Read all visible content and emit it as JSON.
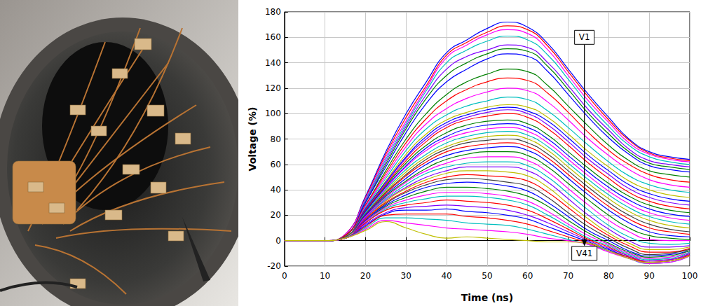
{
  "chart_data": {
    "type": "line",
    "x_label": "Time (ns)",
    "y_label": "Voltage (%)",
    "xlim": [
      0,
      100
    ],
    "xticks": [
      0,
      10,
      20,
      30,
      40,
      50,
      60,
      70,
      80,
      90,
      100
    ],
    "ylim": [
      -20,
      180
    ],
    "yticks": [
      -20,
      0,
      20,
      40,
      60,
      80,
      100,
      120,
      140,
      160,
      180
    ],
    "grid": true,
    "annotations": [
      {
        "text": "V1",
        "x": 74,
        "y": 160
      },
      {
        "text": "V41",
        "x": 74,
        "y": -10
      }
    ],
    "x": [
      0,
      10,
      15,
      20,
      25,
      30,
      35,
      40,
      45,
      50,
      55,
      60,
      65,
      70,
      75,
      80,
      85,
      90,
      95,
      100
    ],
    "series": [
      {
        "color": "#0000ff",
        "values": [
          0,
          0,
          5,
          35,
          70,
          100,
          125,
          148,
          158,
          167,
          172,
          168,
          155,
          135,
          115,
          97,
          80,
          70,
          66,
          64
        ]
      },
      {
        "color": "#ff0000",
        "values": [
          0,
          0,
          5,
          34,
          68,
          97,
          122,
          146,
          156,
          164,
          169,
          166,
          153,
          133,
          113,
          95,
          79,
          69,
          65,
          63
        ]
      },
      {
        "color": "#ff00ff",
        "values": [
          0,
          0,
          5,
          33,
          66,
          94,
          120,
          144,
          154,
          162,
          166,
          163,
          150,
          130,
          110,
          93,
          77,
          68,
          64,
          62
        ]
      },
      {
        "color": "#00bfbf",
        "values": [
          0,
          0,
          4,
          32,
          64,
          92,
          118,
          140,
          150,
          157,
          161,
          158,
          146,
          127,
          107,
          90,
          75,
          66,
          62,
          60
        ]
      },
      {
        "color": "#7f00ff",
        "values": [
          0,
          0,
          4,
          31,
          62,
          90,
          115,
          135,
          145,
          150,
          154,
          152,
          140,
          122,
          103,
          87,
          72,
          63,
          60,
          58
        ]
      },
      {
        "color": "#008000",
        "values": [
          0,
          0,
          4,
          30,
          60,
          88,
          112,
          130,
          140,
          147,
          151,
          149,
          137,
          119,
          100,
          84,
          70,
          61,
          58,
          56
        ]
      },
      {
        "color": "#0000ff",
        "values": [
          0,
          0,
          4,
          30,
          58,
          85,
          108,
          125,
          135,
          143,
          147,
          145,
          133,
          115,
          97,
          81,
          68,
          59,
          56,
          54
        ]
      },
      {
        "color": "#008000",
        "values": [
          0,
          0,
          4,
          28,
          55,
          80,
          100,
          115,
          125,
          131,
          135,
          133,
          122,
          106,
          90,
          75,
          63,
          55,
          52,
          50
        ]
      },
      {
        "color": "#ff0000",
        "values": [
          0,
          0,
          4,
          28,
          53,
          77,
          96,
          110,
          119,
          125,
          128,
          126,
          116,
          101,
          85,
          71,
          60,
          52,
          48,
          46
        ]
      },
      {
        "color": "#ff00ff",
        "values": [
          0,
          0,
          3,
          27,
          51,
          74,
          92,
          104,
          112,
          117,
          120,
          118,
          109,
          95,
          80,
          67,
          56,
          48,
          44,
          42
        ]
      },
      {
        "color": "#00bfbf",
        "values": [
          0,
          0,
          3,
          26,
          49,
          71,
          88,
          99,
          106,
          110,
          113,
          111,
          102,
          89,
          75,
          62,
          51,
          44,
          40,
          38
        ]
      },
      {
        "color": "#bfbf00",
        "values": [
          0,
          0,
          3,
          25,
          47,
          68,
          84,
          95,
          101,
          105,
          107,
          105,
          97,
          84,
          70,
          58,
          47,
          40,
          36,
          34
        ]
      },
      {
        "color": "#0000ff",
        "values": [
          0,
          0,
          3,
          25,
          46,
          66,
          82,
          93,
          99,
          103,
          105,
          102,
          94,
          81,
          67,
          55,
          44,
          37,
          33,
          31
        ]
      },
      {
        "color": "#7f00ff",
        "values": [
          0,
          0,
          3,
          24,
          45,
          65,
          80,
          91,
          97,
          101,
          103,
          100,
          91,
          78,
          64,
          52,
          41,
          34,
          30,
          28
        ]
      },
      {
        "color": "#ff0000",
        "values": [
          0,
          0,
          3,
          24,
          44,
          63,
          78,
          89,
          95,
          98,
          100,
          97,
          88,
          75,
          61,
          49,
          38,
          31,
          27,
          25
        ]
      },
      {
        "color": "#008000",
        "values": [
          0,
          0,
          3,
          23,
          43,
          61,
          75,
          85,
          91,
          94,
          95,
          92,
          83,
          70,
          57,
          45,
          35,
          28,
          24,
          22
        ]
      },
      {
        "color": "#0000ff",
        "values": [
          0,
          0,
          3,
          23,
          42,
          59,
          73,
          82,
          88,
          91,
          92,
          89,
          80,
          67,
          54,
          42,
          32,
          25,
          21,
          19
        ]
      },
      {
        "color": "#ff00ff",
        "values": [
          0,
          0,
          3,
          22,
          41,
          58,
          71,
          80,
          85,
          88,
          89,
          86,
          77,
          64,
          51,
          39,
          29,
          22,
          18,
          16
        ]
      },
      {
        "color": "#00bfbf",
        "values": [
          0,
          0,
          3,
          22,
          40,
          56,
          68,
          77,
          82,
          85,
          86,
          83,
          74,
          61,
          48,
          36,
          26,
          19,
          15,
          13
        ]
      },
      {
        "color": "#bfbf00",
        "values": [
          0,
          0,
          3,
          21,
          39,
          54,
          66,
          74,
          79,
          82,
          83,
          80,
          71,
          58,
          45,
          33,
          23,
          16,
          12,
          10
        ]
      },
      {
        "color": "#404040",
        "values": [
          0,
          0,
          3,
          21,
          38,
          52,
          64,
          72,
          77,
          79,
          80,
          77,
          68,
          55,
          42,
          30,
          20,
          13,
          9,
          7
        ]
      },
      {
        "color": "#ff0000",
        "values": [
          0,
          0,
          2,
          20,
          37,
          51,
          62,
          70,
          74,
          76,
          77,
          74,
          65,
          52,
          39,
          27,
          17,
          10,
          7,
          5
        ]
      },
      {
        "color": "#0000ff",
        "values": [
          0,
          0,
          2,
          20,
          36,
          49,
          60,
          67,
          71,
          73,
          74,
          71,
          62,
          49,
          36,
          24,
          14,
          7,
          4,
          3
        ]
      },
      {
        "color": "#008000",
        "values": [
          0,
          0,
          2,
          19,
          35,
          47,
          57,
          64,
          68,
          70,
          70,
          67,
          58,
          45,
          32,
          20,
          10,
          4,
          2,
          1
        ]
      },
      {
        "color": "#ff00ff",
        "values": [
          0,
          0,
          2,
          19,
          34,
          46,
          55,
          61,
          65,
          66,
          66,
          63,
          54,
          41,
          28,
          16,
          7,
          1,
          0,
          0
        ]
      },
      {
        "color": "#00bfbf",
        "values": [
          0,
          0,
          2,
          18,
          33,
          44,
          53,
          58,
          61,
          62,
          62,
          59,
          50,
          37,
          24,
          12,
          3,
          -2,
          -3,
          -2
        ]
      },
      {
        "color": "#7f00ff",
        "values": [
          0,
          0,
          2,
          18,
          32,
          42,
          50,
          55,
          58,
          58,
          58,
          55,
          46,
          33,
          20,
          9,
          0,
          -5,
          -5,
          -4
        ]
      },
      {
        "color": "#bfbf00",
        "values": [
          0,
          0,
          2,
          17,
          31,
          41,
          48,
          53,
          55,
          55,
          54,
          51,
          42,
          29,
          17,
          6,
          -2,
          -7,
          -7,
          -5
        ]
      },
      {
        "color": "#ff0000",
        "values": [
          0,
          0,
          2,
          17,
          30,
          39,
          46,
          50,
          52,
          51,
          50,
          47,
          38,
          26,
          14,
          4,
          -4,
          -9,
          -9,
          -6
        ]
      },
      {
        "color": "#404040",
        "values": [
          0,
          0,
          2,
          16,
          29,
          38,
          44,
          48,
          49,
          48,
          46,
          43,
          34,
          22,
          11,
          2,
          -6,
          -11,
          -10,
          -7
        ]
      },
      {
        "color": "#0000ff",
        "values": [
          0,
          0,
          2,
          16,
          28,
          36,
          42,
          45,
          46,
          45,
          43,
          39,
          30,
          19,
          8,
          0,
          -8,
          -12,
          -11,
          -8
        ]
      },
      {
        "color": "#008000",
        "values": [
          0,
          0,
          2,
          15,
          27,
          34,
          39,
          42,
          42,
          41,
          39,
          35,
          27,
          16,
          6,
          -2,
          -9,
          -13,
          -12,
          -8
        ]
      },
      {
        "color": "#ff00ff",
        "values": [
          0,
          0,
          2,
          15,
          26,
          32,
          36,
          38,
          38,
          37,
          35,
          31,
          23,
          13,
          4,
          -3,
          -10,
          -14,
          -13,
          -9
        ]
      },
      {
        "color": "#00bfbf",
        "values": [
          0,
          0,
          2,
          14,
          25,
          30,
          33,
          35,
          35,
          34,
          32,
          28,
          20,
          11,
          2,
          -4,
          -11,
          -15,
          -14,
          -9
        ]
      },
      {
        "color": "#ff0000",
        "values": [
          0,
          0,
          2,
          14,
          24,
          28,
          30,
          32,
          31,
          30,
          28,
          24,
          17,
          9,
          1,
          -5,
          -12,
          -16,
          -15,
          -10
        ]
      },
      {
        "color": "#7f00ff",
        "values": [
          0,
          0,
          2,
          13,
          22,
          26,
          27,
          28,
          27,
          26,
          24,
          20,
          14,
          7,
          0,
          -6,
          -12,
          -16,
          -15,
          -10
        ]
      },
      {
        "color": "#0000ff",
        "values": [
          0,
          0,
          2,
          12,
          21,
          24,
          24,
          25,
          23,
          22,
          20,
          17,
          11,
          5,
          -1,
          -7,
          -13,
          -17,
          -16,
          -11
        ]
      },
      {
        "color": "#ff0000",
        "values": [
          0,
          0,
          2,
          11,
          20,
          21,
          21,
          21,
          19,
          18,
          16,
          13,
          8,
          3,
          -2,
          -8,
          -13,
          -17,
          -16,
          -11
        ]
      },
      {
        "color": "#00bfbf",
        "values": [
          0,
          0,
          2,
          10,
          18,
          18,
          17,
          16,
          14,
          13,
          12,
          9,
          5,
          1,
          -3,
          -8,
          -14,
          -18,
          -17,
          -12
        ]
      },
      {
        "color": "#ff00ff",
        "values": [
          0,
          0,
          2,
          9,
          16,
          14,
          12,
          10,
          9,
          8,
          7,
          5,
          2,
          0,
          -3,
          -9,
          -14,
          -18,
          -17,
          -12
        ]
      },
      {
        "color": "#bfbf00",
        "values": [
          0,
          0,
          2,
          8,
          15,
          10,
          5,
          2,
          3,
          2,
          1,
          0,
          -1,
          -1,
          -2,
          -8,
          -14,
          -17,
          -16,
          -12
        ]
      }
    ]
  }
}
